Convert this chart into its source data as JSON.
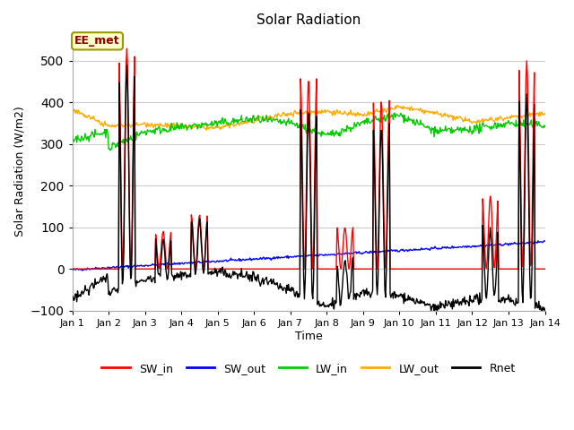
{
  "title": "Solar Radiation",
  "xlabel": "Time",
  "ylabel": "Solar Radiation (W/m2)",
  "annotation": "EE_met",
  "ylim": [
    -100,
    570
  ],
  "xlim": [
    0,
    13
  ],
  "xtick_labels": [
    "Jan 1",
    "Jan 2",
    "Jan 3",
    "Jan 4",
    "Jan 5",
    "Jan 6",
    "Jan 7",
    "Jan 8",
    "Jan 9",
    "Jan 10",
    "Jan 11",
    "Jan 12",
    "Jan 13",
    "Jan 14"
  ],
  "series_colors": {
    "SW_in": "#ff0000",
    "SW_out": "#0000ff",
    "LW_in": "#00cc00",
    "LW_out": "#ffaa00",
    "Rnet": "#000000"
  },
  "bg_color": "#ffffff",
  "grid_color": "#cccccc"
}
